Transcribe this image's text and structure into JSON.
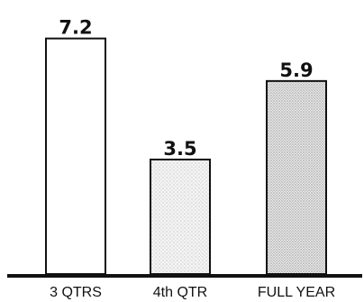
{
  "chart_data": {
    "type": "bar",
    "categories": [
      "3 QTRS",
      "4th QTR",
      "FULL YEAR"
    ],
    "values": [
      7.2,
      3.5,
      5.9
    ],
    "data_labels": [
      "7.2",
      "3.5",
      "5.9"
    ],
    "title": "",
    "xlabel": "",
    "ylabel": "",
    "ylim": [
      0,
      8.1
    ],
    "grid": false,
    "legend": "none",
    "bar_fills": [
      "plain",
      "stippled",
      "stippled"
    ]
  },
  "colors": {
    "ink": "#111111",
    "background": "#ffffff"
  }
}
